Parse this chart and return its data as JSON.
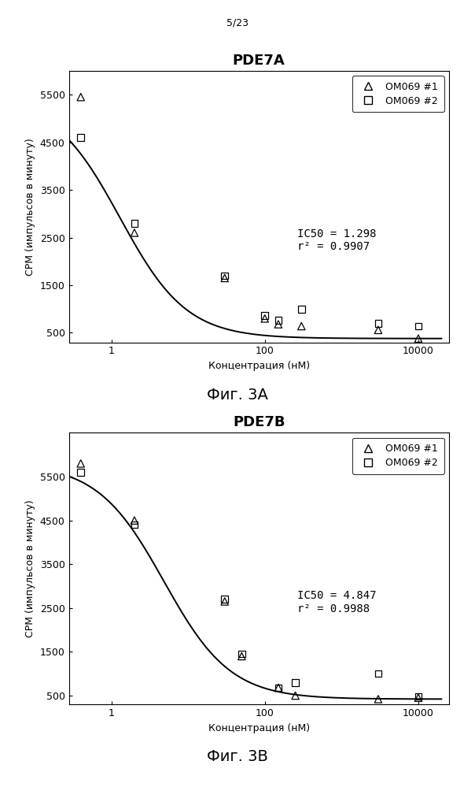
{
  "page_label": "5/23",
  "fig_a": {
    "title": "PDE7A",
    "caption": "Фиг. 3А",
    "xlabel": "Концентрация (нМ)",
    "ylabel": "CPM (импульсов в минуту)",
    "ic50": 1.298,
    "r2": 0.9907,
    "annotation_line1": "IC50 = 1.298",
    "annotation_line2": "r² = 0.9907",
    "series1_x": [
      0.4,
      2.0,
      30,
      100,
      150,
      300,
      3000,
      10000
    ],
    "series1_y": [
      5450,
      2600,
      1650,
      800,
      680,
      640,
      560,
      380
    ],
    "series2_x": [
      0.4,
      2.0,
      30,
      100,
      150,
      300,
      3000,
      10000
    ],
    "series2_y": [
      4600,
      2800,
      1700,
      860,
      760,
      1000,
      700,
      640
    ],
    "ylim": [
      300,
      6000
    ],
    "yticks": [
      500,
      1500,
      2500,
      3500,
      4500,
      5500
    ],
    "ytick_labels": [
      "500",
      "1500",
      "2500",
      "3500",
      "4500",
      "5500"
    ]
  },
  "fig_b": {
    "title": "PDE7B",
    "caption": "Фиг. 3В",
    "xlabel": "Концентрация (нМ)",
    "ylabel": "CPM (импульсов в минуту)",
    "ic50": 4.847,
    "r2": 0.9988,
    "annotation_line1": "IC50 = 4.847",
    "annotation_line2": "r² = 0.9988",
    "series1_x": [
      0.4,
      2.0,
      30,
      50,
      150,
      250,
      3000,
      10000
    ],
    "series1_y": [
      5800,
      4500,
      2650,
      1400,
      680,
      500,
      420,
      450
    ],
    "series2_x": [
      0.4,
      2.0,
      30,
      50,
      150,
      250,
      3000,
      10000
    ],
    "series2_y": [
      5600,
      4400,
      2700,
      1450,
      680,
      800,
      1000,
      480
    ],
    "ylim": [
      300,
      6500
    ],
    "yticks": [
      500,
      1500,
      2500,
      3500,
      4500,
      5500
    ],
    "ytick_labels": [
      "500",
      "1500",
      "2500",
      "3500",
      "4500",
      "5500"
    ]
  },
  "xticks": [
    1,
    100,
    10000
  ],
  "xticklabels": [
    "1",
    "100",
    "10000"
  ],
  "xlim": [
    0.28,
    25000
  ],
  "background_color": "#ffffff",
  "title_fontsize": 13,
  "label_fontsize": 9,
  "tick_fontsize": 9,
  "legend_fontsize": 9,
  "annotation_fontsize": 10,
  "caption_fontsize": 14
}
